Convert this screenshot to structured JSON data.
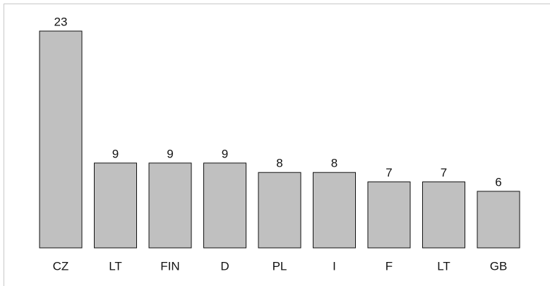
{
  "chart_data": {
    "type": "bar",
    "categories": [
      "CZ",
      "LT",
      "FIN",
      "D",
      "PL",
      "I",
      "F",
      "LT",
      "GB"
    ],
    "values": [
      23,
      9,
      9,
      9,
      8,
      8,
      7,
      7,
      6
    ],
    "color": "#c0c0c0"
  }
}
